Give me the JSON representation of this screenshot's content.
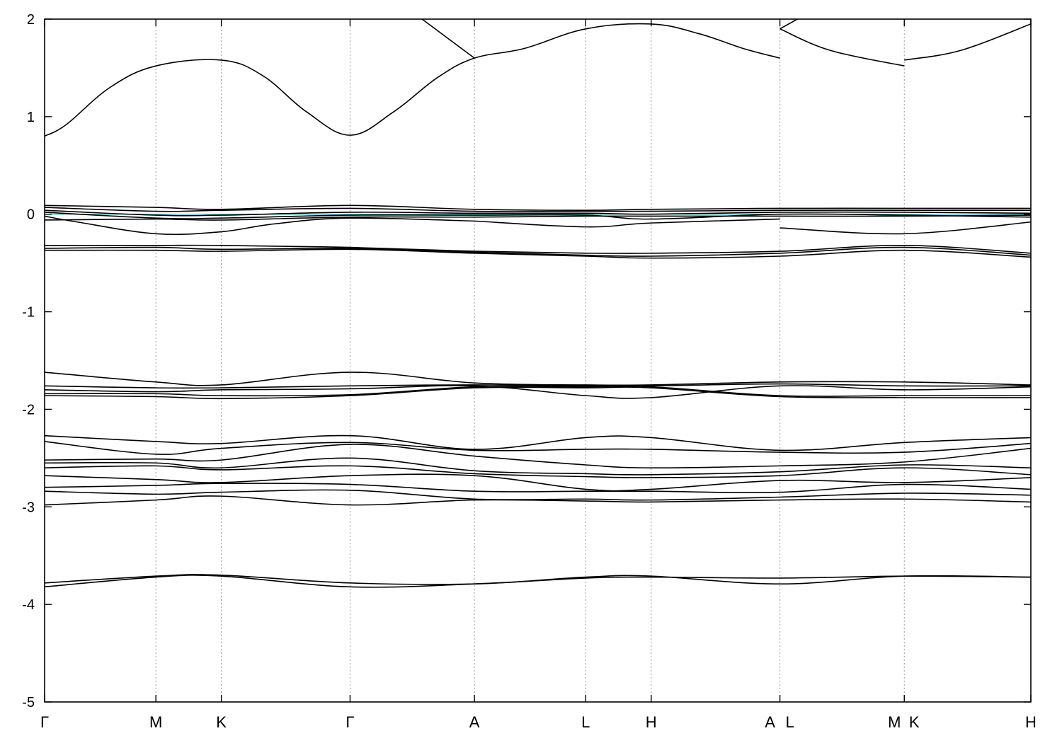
{
  "chart_data": {
    "type": "line",
    "title": "",
    "xlabel": "",
    "ylabel": "",
    "ylim": [
      -5,
      2
    ],
    "xlim": [
      0,
      4.52
    ],
    "grid": "vertical dotted lines at high-symmetry points",
    "legend": "none",
    "y_ticks": [
      -5,
      -4,
      -3,
      -2,
      -1,
      0,
      1,
      2
    ],
    "kpoints": [
      {
        "label": "Γ",
        "x": 0.0
      },
      {
        "label": "M",
        "x": 0.51
      },
      {
        "label": "K",
        "x": 0.81
      },
      {
        "label": "Γ",
        "x": 1.4
      },
      {
        "label": "A",
        "x": 1.97
      },
      {
        "label": "L",
        "x": 2.48
      },
      {
        "label": "H",
        "x": 2.78
      },
      {
        "label": "A",
        "x": 3.37
      },
      {
        "label": "L",
        "x": 3.37
      },
      {
        "label": "M",
        "x": 3.94
      },
      {
        "label": "K",
        "x": 3.94
      },
      {
        "label": "H",
        "x": 4.52
      }
    ],
    "fermi_level": 0.0,
    "colors": {
      "bands": "#000000",
      "fermi": "#4fb7c8",
      "grid": "#9a9a9a"
    },
    "series": [
      {
        "x": [
          0,
          0.1,
          0.3,
          0.51,
          0.81,
          1.0,
          1.2,
          1.4,
          1.6,
          1.8,
          1.97,
          2.2,
          2.48,
          2.78,
          3.0,
          3.2,
          3.37
        ],
        "values": [
          0.8,
          0.92,
          1.3,
          1.52,
          1.58,
          1.42,
          1.05,
          0.81,
          1.05,
          1.4,
          1.6,
          1.7,
          1.9,
          1.95,
          1.85,
          1.7,
          1.6
        ]
      },
      {
        "x": [
          3.37,
          3.6,
          3.94
        ],
        "values": [
          1.9,
          1.68,
          1.52
        ]
      },
      {
        "x": [
          3.94,
          4.2,
          4.52
        ],
        "values": [
          1.58,
          1.68,
          1.95
        ]
      },
      {
        "x": [
          1.73,
          1.97
        ],
        "values": [
          2.0,
          1.6
        ]
      },
      {
        "x": [
          3.37,
          3.45
        ],
        "values": [
          1.9,
          2.0
        ]
      },
      {
        "x": [
          0,
          0.51,
          0.81,
          1.4,
          1.97,
          2.48,
          2.78,
          3.37,
          3.94,
          4.52
        ],
        "values": [
          0.09,
          0.07,
          0.05,
          0.09,
          0.05,
          0.04,
          0.05,
          0.06,
          0.06,
          0.06
        ]
      },
      {
        "x": [
          0,
          0.51,
          0.81,
          1.4,
          1.97,
          2.48,
          2.78,
          3.37,
          3.94,
          4.52
        ],
        "values": [
          0.07,
          0.03,
          0.04,
          0.06,
          0.03,
          0.03,
          0.03,
          0.04,
          0.04,
          0.04
        ]
      },
      {
        "x": [
          0,
          0.51,
          0.81,
          1.4,
          1.97,
          2.48,
          2.78,
          3.37,
          3.94,
          4.52
        ],
        "values": [
          0.04,
          -0.01,
          -0.01,
          0.02,
          0.01,
          0.01,
          0.0,
          0.02,
          0.02,
          0.01
        ]
      },
      {
        "x": [
          0,
          0.51,
          0.81,
          1.4,
          1.97,
          2.48,
          2.78,
          3.37,
          3.94,
          4.52
        ],
        "values": [
          0.02,
          -0.04,
          -0.04,
          -0.01,
          -0.01,
          -0.01,
          -0.05,
          0.0,
          -0.01,
          -0.03
        ]
      },
      {
        "x": [
          0,
          0.15,
          0.51,
          0.81,
          1.05,
          1.4,
          1.97
        ],
        "values": [
          -0.02,
          -0.08,
          -0.2,
          -0.18,
          -0.1,
          -0.04,
          -0.07
        ]
      },
      {
        "x": [
          1.97,
          2.48,
          2.78,
          3.37
        ],
        "values": [
          -0.07,
          -0.13,
          -0.09,
          -0.05
        ]
      },
      {
        "x": [
          3.37,
          3.94,
          4.52
        ],
        "values": [
          -0.14,
          -0.2,
          -0.08
        ]
      },
      {
        "x": [
          0,
          0.51,
          0.81,
          1.4,
          1.97,
          2.48,
          2.78,
          3.37,
          3.94,
          4.52
        ],
        "values": [
          -0.06,
          -0.05,
          -0.06,
          -0.03,
          -0.03,
          -0.02,
          -0.02,
          -0.02,
          -0.02,
          -0.01
        ]
      },
      {
        "x": [
          0,
          0.51,
          0.81,
          1.4,
          1.97,
          2.48,
          2.78,
          3.37,
          3.94,
          4.52
        ],
        "values": [
          -0.32,
          -0.32,
          -0.32,
          -0.34,
          -0.38,
          -0.4,
          -0.4,
          -0.38,
          -0.32,
          -0.4
        ]
      },
      {
        "x": [
          0,
          0.51,
          0.81,
          1.4,
          1.97,
          2.48,
          2.78,
          3.37,
          3.94,
          4.52
        ],
        "values": [
          -0.35,
          -0.34,
          -0.36,
          -0.35,
          -0.39,
          -0.42,
          -0.43,
          -0.4,
          -0.34,
          -0.42
        ]
      },
      {
        "x": [
          0,
          0.51,
          0.81,
          1.4,
          1.97,
          2.48,
          2.78,
          3.37,
          3.94,
          4.52
        ],
        "values": [
          -0.37,
          -0.37,
          -0.38,
          -0.36,
          -0.4,
          -0.43,
          -0.45,
          -0.43,
          -0.37,
          -0.44
        ]
      },
      {
        "x": [
          0,
          0.51,
          0.81,
          1.4,
          1.97,
          2.48,
          2.78,
          3.37,
          3.94,
          4.52
        ],
        "values": [
          -1.62,
          -1.72,
          -1.75,
          -1.62,
          -1.73,
          -1.75,
          -1.75,
          -1.72,
          -1.72,
          -1.75
        ]
      },
      {
        "x": [
          0,
          0.51,
          0.81,
          1.4,
          1.97,
          2.48,
          2.78,
          3.37,
          3.94,
          4.52
        ],
        "values": [
          -1.76,
          -1.78,
          -1.78,
          -1.76,
          -1.75,
          -1.76,
          -1.76,
          -1.74,
          -1.76,
          -1.76
        ]
      },
      {
        "x": [
          0,
          0.51,
          0.81,
          1.4,
          1.97,
          2.48,
          2.78,
          3.37,
          3.94,
          4.52
        ],
        "values": [
          -1.8,
          -1.82,
          -1.8,
          -1.79,
          -1.76,
          -1.86,
          -1.88,
          -1.76,
          -1.8,
          -1.77
        ]
      },
      {
        "x": [
          0,
          0.51,
          0.81,
          1.4,
          1.97,
          2.48,
          2.78,
          3.37,
          3.94,
          4.52
        ],
        "values": [
          -1.84,
          -1.84,
          -1.86,
          -1.85,
          -1.77,
          -1.77,
          -1.77,
          -1.86,
          -1.86,
          -1.86
        ]
      },
      {
        "x": [
          0,
          0.51,
          0.81,
          1.4,
          1.97,
          2.48,
          2.78,
          3.37,
          3.94,
          4.52
        ],
        "values": [
          -1.86,
          -1.87,
          -1.89,
          -1.86,
          -1.78,
          -1.78,
          -1.78,
          -1.87,
          -1.88,
          -1.88
        ]
      },
      {
        "x": [
          0,
          0.51,
          0.81,
          1.4,
          1.97,
          2.48,
          2.78,
          3.37,
          3.94,
          4.52
        ],
        "values": [
          -2.27,
          -2.33,
          -2.35,
          -2.27,
          -2.41,
          -2.29,
          -2.29,
          -2.42,
          -2.34,
          -2.29
        ]
      },
      {
        "x": [
          0,
          0.51,
          0.81,
          1.4,
          1.97,
          2.48,
          2.78,
          3.37,
          3.94,
          4.52
        ],
        "values": [
          -2.33,
          -2.46,
          -2.4,
          -2.34,
          -2.42,
          -2.41,
          -2.41,
          -2.44,
          -2.44,
          -2.35
        ]
      },
      {
        "x": [
          0,
          0.51,
          0.81,
          1.4,
          1.97,
          2.48,
          2.78,
          3.37,
          3.94,
          4.52
        ],
        "values": [
          -2.52,
          -2.51,
          -2.52,
          -2.36,
          -2.48,
          -2.57,
          -2.6,
          -2.58,
          -2.54,
          -2.4
        ]
      },
      {
        "x": [
          0,
          0.51,
          0.81,
          1.4,
          1.97,
          2.48,
          2.78,
          3.37,
          3.94,
          4.52
        ],
        "values": [
          -2.55,
          -2.55,
          -2.6,
          -2.5,
          -2.63,
          -2.66,
          -2.67,
          -2.64,
          -2.57,
          -2.6
        ]
      },
      {
        "x": [
          0,
          0.51,
          0.81,
          1.4,
          1.97,
          2.48,
          2.78,
          3.37,
          3.94,
          4.52
        ],
        "values": [
          -2.6,
          -2.58,
          -2.62,
          -2.58,
          -2.66,
          -2.69,
          -2.7,
          -2.68,
          -2.6,
          -2.67
        ]
      },
      {
        "x": [
          0,
          0.51,
          0.81,
          1.4,
          1.97,
          2.48,
          2.78,
          3.37,
          3.94,
          4.52
        ],
        "values": [
          -2.68,
          -2.72,
          -2.75,
          -2.68,
          -2.68,
          -2.82,
          -2.82,
          -2.73,
          -2.75,
          -2.7
        ]
      },
      {
        "x": [
          0,
          0.51,
          0.81,
          1.4,
          1.97,
          2.48,
          2.78,
          3.37,
          3.94,
          4.52
        ],
        "values": [
          -2.8,
          -2.78,
          -2.76,
          -2.77,
          -2.84,
          -2.84,
          -2.84,
          -2.85,
          -2.77,
          -2.82
        ]
      },
      {
        "x": [
          0,
          0.51,
          0.81,
          1.4,
          1.97,
          2.48,
          2.78,
          3.37,
          3.94,
          4.52
        ],
        "values": [
          -2.84,
          -2.87,
          -2.85,
          -2.83,
          -2.92,
          -2.92,
          -2.93,
          -2.9,
          -2.86,
          -2.88
        ]
      },
      {
        "x": [
          0,
          0.51,
          0.81,
          1.4,
          1.97,
          2.48,
          2.78,
          3.37,
          3.94,
          4.52
        ],
        "values": [
          -2.98,
          -2.93,
          -2.89,
          -2.98,
          -2.93,
          -2.94,
          -2.95,
          -2.93,
          -2.92,
          -2.95
        ]
      },
      {
        "x": [
          0,
          0.51,
          0.81,
          1.4,
          1.97,
          2.48,
          2.78,
          3.37,
          3.94,
          4.52
        ],
        "values": [
          -3.78,
          -3.71,
          -3.7,
          -3.78,
          -3.79,
          -3.72,
          -3.71,
          -3.79,
          -3.71,
          -3.72
        ]
      },
      {
        "x": [
          0,
          0.51,
          0.81,
          1.4,
          1.97,
          2.48,
          2.78,
          3.37,
          3.94,
          4.52
        ],
        "values": [
          -3.82,
          -3.72,
          -3.71,
          -3.82,
          -3.79,
          -3.73,
          -3.72,
          -3.73,
          -3.71,
          -3.72
        ]
      }
    ]
  }
}
